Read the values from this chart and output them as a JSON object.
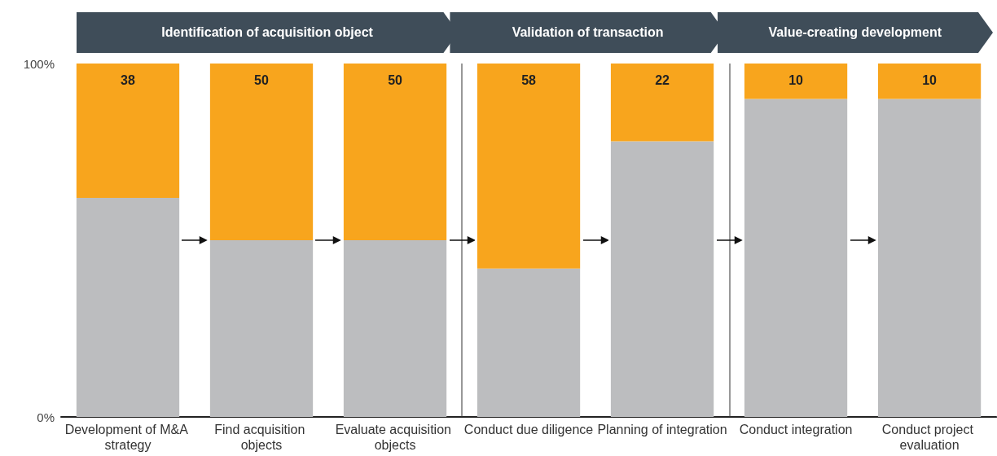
{
  "chart_data": {
    "type": "bar",
    "stacked": true,
    "categories": [
      "Development of M&A strategy",
      "Find acquisition objects",
      "Evaluate acquisition objects",
      "Conduct due diligence",
      "Planning of integration",
      "Conduct integration",
      "Conduct project evaluation"
    ],
    "series": [
      {
        "color": "#bcbdbf",
        "values": [
          62,
          50,
          50,
          42,
          78,
          90,
          90
        ]
      },
      {
        "color": "#f8a51d",
        "values": [
          38,
          50,
          50,
          58,
          22,
          10,
          10
        ],
        "value_labels": [
          "38",
          "50",
          "50",
          "58",
          "22",
          "10",
          "10"
        ]
      }
    ],
    "ylim": [
      0,
      100
    ],
    "yticks": [
      {
        "value": 0,
        "label": "0%"
      },
      {
        "value": 100,
        "label": "100%"
      }
    ],
    "annotations": [
      "Identification of acquisition object",
      "Validation of transaction",
      "Value-creating development"
    ],
    "grid": false
  }
}
